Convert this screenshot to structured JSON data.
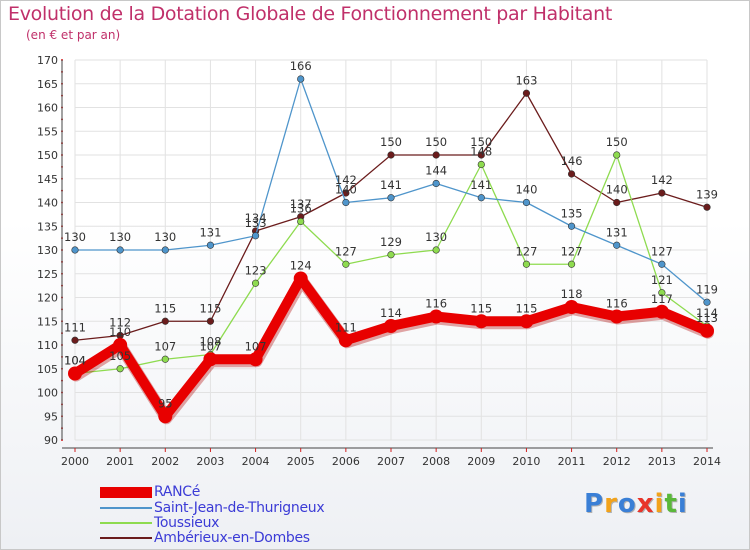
{
  "chart_data": {
    "type": "line",
    "title": "Evolution de la Dotation Globale de Fonctionnement par Habitant",
    "subtitle": "(en € et par an)",
    "xlabel": "",
    "ylabel": "",
    "categories": [
      "2000",
      "2001",
      "2002",
      "2003",
      "2004",
      "2005",
      "2006",
      "2007",
      "2008",
      "2009",
      "2010",
      "2011",
      "2012",
      "2013",
      "2014"
    ],
    "ylim": [
      90,
      170
    ],
    "yticks": [
      90,
      95,
      100,
      105,
      110,
      115,
      120,
      125,
      130,
      135,
      140,
      145,
      150,
      155,
      160,
      165,
      170
    ],
    "grid": true,
    "legend_position": "bottom-left",
    "series": [
      {
        "name": "RANCé",
        "color": "#e80000",
        "values": [
          104,
          110,
          95,
          107,
          107,
          124,
          111,
          114,
          116,
          115,
          115,
          118,
          116,
          117,
          113
        ]
      },
      {
        "name": "Saint-Jean-de-Thurigneux",
        "color": "#4f95cb",
        "values": [
          130,
          130,
          130,
          131,
          133,
          166,
          140,
          141,
          144,
          141,
          140,
          135,
          131,
          127,
          119
        ]
      },
      {
        "name": "Toussieux",
        "color": "#8edb4f",
        "values": [
          104,
          105,
          107,
          108,
          123,
          136,
          127,
          129,
          130,
          148,
          127,
          127,
          150,
          121,
          114
        ]
      },
      {
        "name": "Ambérieux-en-Dombes",
        "color": "#6b1c1c",
        "values": [
          111,
          112,
          115,
          115,
          134,
          137,
          142,
          150,
          150,
          150,
          163,
          146,
          140,
          142,
          139
        ]
      }
    ]
  },
  "logo": {
    "letters": [
      "P",
      "r",
      "o",
      "x",
      "i",
      "t",
      "i"
    ],
    "colors": [
      "#3a7fd6",
      "#f2a21a",
      "#3a7fd6",
      "#e8342a",
      "#f2a21a",
      "#5ab83a",
      "#3a7fd6"
    ]
  }
}
